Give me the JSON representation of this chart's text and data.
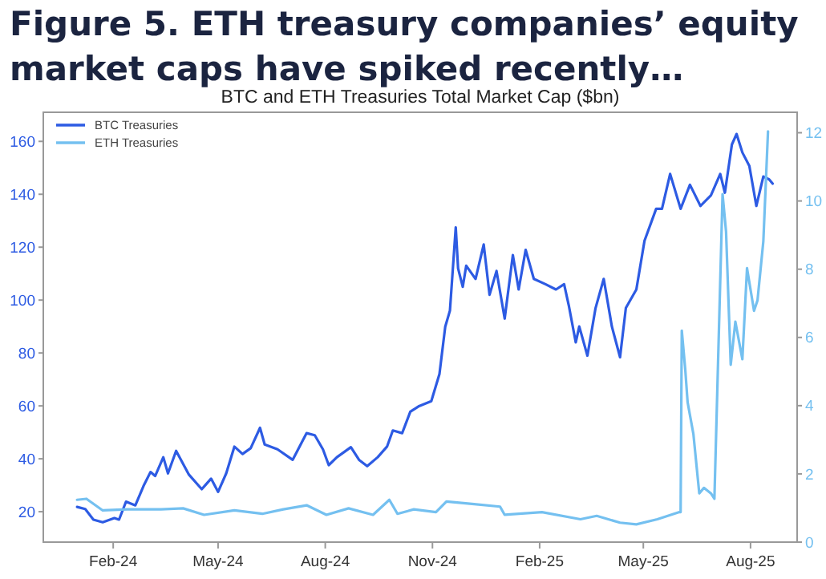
{
  "chart_data": {
    "type": "line",
    "title": "Figure 5. ETH treasury companies’ equity market caps have spiked recently…",
    "subtitle": "BTC and ETH Treasuries Total Market Cap ($bn)",
    "xlim": [
      "2023-12-03",
      "2025-09-10"
    ],
    "xticks": [
      {
        "value": "2024-02-01",
        "label": "Feb-24"
      },
      {
        "value": "2024-05-01",
        "label": "May-24"
      },
      {
        "value": "2024-08-01",
        "label": "Aug-24"
      },
      {
        "value": "2024-11-01",
        "label": "Nov-24"
      },
      {
        "value": "2025-02-01",
        "label": "Feb-25"
      },
      {
        "value": "2025-05-01",
        "label": "May-25"
      },
      {
        "value": "2025-08-01",
        "label": "Aug-25"
      }
    ],
    "ylim": [
      8.5,
      171
    ],
    "yticks": [
      20,
      40,
      60,
      80,
      100,
      120,
      140,
      160
    ],
    "y2lim": [
      0,
      12.6
    ],
    "y2ticks": [
      0,
      2,
      4,
      6,
      8,
      10,
      12
    ],
    "legend": "top left",
    "grid": false,
    "marker": "none",
    "line_style": "solid",
    "series": [
      {
        "name": "BTC Treasuries",
        "color": "#2d5be3",
        "x": [
          "2024-01-01",
          "2024-01-08",
          "2024-01-15",
          "2024-01-23",
          "2024-02-02",
          "2024-02-06",
          "2024-02-12",
          "2024-02-20",
          "2024-02-27",
          "2024-03-04",
          "2024-03-08",
          "2024-03-15",
          "2024-03-19",
          "2024-03-26",
          "2024-04-06",
          "2024-04-17",
          "2024-04-25",
          "2024-05-01",
          "2024-05-08",
          "2024-05-15",
          "2024-05-22",
          "2024-05-29",
          "2024-06-06",
          "2024-06-10",
          "2024-06-21",
          "2024-07-04",
          "2024-07-16",
          "2024-07-23",
          "2024-07-30",
          "2024-08-04",
          "2024-08-11",
          "2024-08-23",
          "2024-08-30",
          "2024-09-06",
          "2024-09-15",
          "2024-09-23",
          "2024-09-28",
          "2024-10-06",
          "2024-10-13",
          "2024-10-20",
          "2024-10-31",
          "2024-11-07",
          "2024-11-12",
          "2024-11-16",
          "2024-11-21",
          "2024-11-23",
          "2024-11-27",
          "2024-11-30",
          "2024-12-08",
          "2024-12-15",
          "2024-12-20",
          "2024-12-26",
          "2025-01-02",
          "2025-01-09",
          "2025-01-14",
          "2025-01-20",
          "2025-01-27",
          "2025-02-06",
          "2025-02-15",
          "2025-02-22",
          "2025-02-26",
          "2025-03-04",
          "2025-03-07",
          "2025-03-14",
          "2025-03-21",
          "2025-03-28",
          "2025-04-04",
          "2025-04-11",
          "2025-04-16",
          "2025-04-25",
          "2025-05-02",
          "2025-05-12",
          "2025-05-17",
          "2025-05-24",
          "2025-06-02",
          "2025-06-10",
          "2025-06-19",
          "2025-06-28",
          "2025-07-06",
          "2025-07-10",
          "2025-07-16",
          "2025-07-20",
          "2025-07-25",
          "2025-07-31",
          "2025-08-06",
          "2025-08-12",
          "2025-08-17",
          "2025-08-20"
        ],
        "values": [
          21.8,
          21,
          17,
          16,
          17.6,
          17,
          23.8,
          22.4,
          29.7,
          35,
          33.5,
          40.6,
          34.5,
          43,
          34,
          28.5,
          32.5,
          27.5,
          34.5,
          44.6,
          41.8,
          44,
          51.7,
          45.4,
          43.6,
          39.6,
          49.7,
          48.9,
          43.6,
          37.6,
          40.6,
          44.4,
          39.6,
          37.2,
          40.6,
          44.6,
          50.7,
          49.7,
          57.8,
          59.8,
          61.8,
          72,
          90,
          96,
          127.5,
          112,
          105,
          113,
          108,
          121,
          102,
          111,
          93,
          117,
          104,
          119,
          108,
          106,
          104,
          106,
          98,
          84,
          90,
          79,
          97,
          108,
          90,
          78.4,
          97,
          104,
          122.4,
          134.5,
          134.5,
          147.7,
          134.5,
          143.6,
          135.6,
          139.6,
          147.7,
          140.6,
          158.8,
          162.8,
          155.8,
          150.7,
          135.6,
          146.7,
          145.6,
          144
        ]
      },
      {
        "name": "ETH Treasuries",
        "color": "#74c0f0",
        "axis": "y2",
        "x": [
          "2024-01-01",
          "2024-01-09",
          "2024-01-23",
          "2024-02-13",
          "2024-03-13",
          "2024-04-01",
          "2024-04-19",
          "2024-05-15",
          "2024-06-08",
          "2024-06-26",
          "2024-07-16",
          "2024-08-02",
          "2024-08-21",
          "2024-09-11",
          "2024-09-25",
          "2024-10-02",
          "2024-10-16",
          "2024-11-04",
          "2024-11-13",
          "2024-12-05",
          "2024-12-29",
          "2025-01-02",
          "2025-02-03",
          "2025-03-08",
          "2025-03-22",
          "2025-04-11",
          "2025-04-25",
          "2025-05-13",
          "2025-06-01",
          "2025-06-02",
          "2025-06-03",
          "2025-06-06",
          "2025-06-08",
          "2025-06-13",
          "2025-06-18",
          "2025-06-22",
          "2025-06-28",
          "2025-07-01",
          "2025-07-08",
          "2025-07-11",
          "2025-07-15",
          "2025-07-19",
          "2025-07-25",
          "2025-07-29",
          "2025-08-04",
          "2025-08-07",
          "2025-08-12",
          "2025-08-16"
        ],
        "values": [
          1.24,
          1.27,
          0.93,
          0.96,
          0.96,
          0.99,
          0.8,
          0.93,
          0.83,
          0.96,
          1.08,
          0.8,
          0.99,
          0.8,
          1.24,
          0.83,
          0.96,
          0.88,
          1.19,
          1.12,
          1.04,
          0.8,
          0.88,
          0.67,
          0.77,
          0.57,
          0.52,
          0.67,
          0.88,
          0.88,
          6.2,
          5.05,
          4.1,
          3.16,
          1.43,
          1.59,
          1.43,
          1.27,
          10.2,
          9.1,
          5.2,
          6.46,
          5.36,
          8.03,
          6.78,
          7.09,
          8.82,
          12.04
        ]
      }
    ]
  }
}
